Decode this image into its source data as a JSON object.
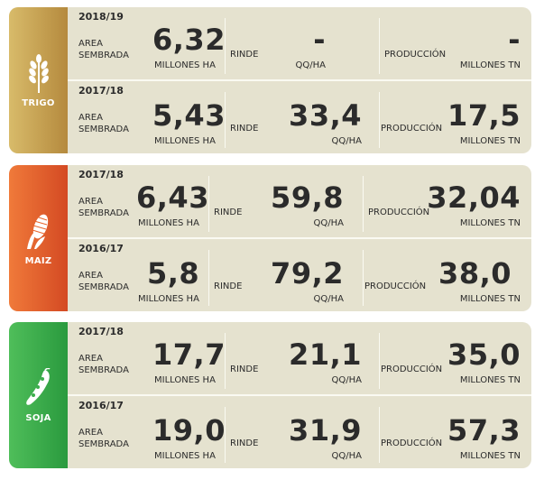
{
  "colors": {
    "trigo_band": "#c9a55a",
    "maiz_band": "#e8642c",
    "soja_band": "#3cae4c",
    "card_bg": "#e5e2cf"
  },
  "labels": {
    "area_line1": "AREA",
    "area_line2": "SEMBRADA",
    "rinde": "RINDE",
    "produccion": "PRODUCCIÓN",
    "unit_area": "MILLONES HA",
    "unit_rinde": "QQ/HA",
    "unit_prod": "MILLONES TN"
  },
  "crops": [
    {
      "name": "TRIGO",
      "icon": "wheat-icon",
      "rows": [
        {
          "year": "2018/19",
          "area": "6,32",
          "rinde": "-",
          "produccion": "-"
        },
        {
          "year": "2017/18",
          "area": "5,43",
          "rinde": "33,4",
          "produccion": "17,5"
        }
      ]
    },
    {
      "name": "MAIZ",
      "icon": "corn-icon",
      "rows": [
        {
          "year": "2017/18",
          "area": "6,43",
          "rinde": "59,8",
          "produccion": "32,04"
        },
        {
          "year": "2016/17",
          "area": "5,8",
          "rinde": "79,2",
          "produccion": "38,0"
        }
      ]
    },
    {
      "name": "SOJA",
      "icon": "soybean-icon",
      "rows": [
        {
          "year": "2017/18",
          "area": "17,7",
          "rinde": "21,1",
          "produccion": "35,0"
        },
        {
          "year": "2016/17",
          "area": "19,0",
          "rinde": "31,9",
          "produccion": "57,3"
        }
      ]
    }
  ]
}
